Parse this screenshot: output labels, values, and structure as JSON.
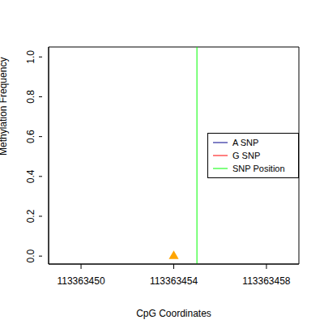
{
  "chart_data": {
    "type": "scatter",
    "x_label": "CpG Coordinates",
    "y_label": "Methylation Frequency",
    "xlim": [
      113363448.6,
      113363459.4
    ],
    "ylim": [
      -0.04,
      1.05
    ],
    "xticks": [
      113363450,
      113363454,
      113363458
    ],
    "yticks": [
      {
        "value": 0,
        "label": "0.0"
      },
      {
        "value": 0.2,
        "label": "0.2"
      },
      {
        "value": 0.4,
        "label": "0.4"
      },
      {
        "value": 0.6,
        "label": "0.6"
      },
      {
        "value": 0.8,
        "label": "0.8"
      },
      {
        "value": 1,
        "label": "1.0"
      }
    ],
    "series": [
      {
        "name": "A SNP",
        "color": "#00008b",
        "x": [],
        "values": []
      },
      {
        "name": "G SNP",
        "color": "#ff0000",
        "x": [],
        "values": []
      }
    ],
    "points": {
      "x": [
        113363454
      ],
      "values": [
        0
      ],
      "color": "#ffa500",
      "marker": "triangle"
    },
    "snp_position": {
      "name": "SNP Position",
      "x": 113363455,
      "color": "#00ff00"
    },
    "legend": "right"
  }
}
